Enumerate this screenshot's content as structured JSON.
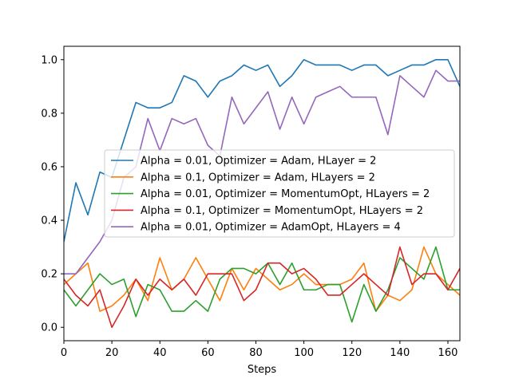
{
  "chart_data": {
    "type": "line",
    "title": "",
    "xlabel": "Steps",
    "ylabel": "",
    "xlim": [
      0,
      165
    ],
    "ylim": [
      -0.05,
      1.05
    ],
    "grid": false,
    "legend_position": "center",
    "x_ticks": [
      0,
      20,
      40,
      60,
      80,
      100,
      120,
      140,
      160
    ],
    "x_tick_labels": [
      "0",
      "20",
      "40",
      "60",
      "80",
      "100",
      "120",
      "140",
      "160"
    ],
    "y_ticks": [
      0.0,
      0.2,
      0.4,
      0.6,
      0.8,
      1.0
    ],
    "y_tick_labels": [
      "0.0",
      "0.2",
      "0.4",
      "0.6",
      "0.8",
      "1.0"
    ],
    "x": [
      0,
      5,
      10,
      15,
      20,
      25,
      30,
      35,
      40,
      45,
      50,
      55,
      60,
      65,
      70,
      75,
      80,
      85,
      90,
      95,
      100,
      105,
      110,
      115,
      120,
      125,
      130,
      135,
      140,
      145,
      150,
      155,
      160,
      165
    ],
    "series": [
      {
        "name": "Alpha = 0.01, Optimizer = Adam, HLayer = 2",
        "color": "#1f77b4",
        "values": [
          0.32,
          0.54,
          0.42,
          0.58,
          0.56,
          0.7,
          0.84,
          0.82,
          0.82,
          0.84,
          0.94,
          0.92,
          0.86,
          0.92,
          0.94,
          0.98,
          0.96,
          0.98,
          0.9,
          0.94,
          1.0,
          0.98,
          0.98,
          0.98,
          0.96,
          0.98,
          0.98,
          0.94,
          0.96,
          0.98,
          0.98,
          1.0,
          1.0,
          0.9
        ]
      },
      {
        "name": "Alpha = 0.1, Optimizer = Adam, HLayers = 2",
        "color": "#ff7f0e",
        "values": [
          0.16,
          0.2,
          0.24,
          0.06,
          0.08,
          0.12,
          0.18,
          0.1,
          0.26,
          0.14,
          0.18,
          0.26,
          0.18,
          0.1,
          0.22,
          0.14,
          0.22,
          0.18,
          0.14,
          0.16,
          0.2,
          0.16,
          0.16,
          0.16,
          0.18,
          0.24,
          0.06,
          0.12,
          0.1,
          0.14,
          0.3,
          0.2,
          0.16,
          0.12
        ]
      },
      {
        "name": "Alpha = 0.01, Optimizer = MomentumOpt, HLayers = 2",
        "color": "#2ca02c",
        "values": [
          0.14,
          0.08,
          0.14,
          0.2,
          0.16,
          0.18,
          0.04,
          0.16,
          0.14,
          0.06,
          0.06,
          0.1,
          0.06,
          0.18,
          0.22,
          0.22,
          0.2,
          0.24,
          0.16,
          0.24,
          0.14,
          0.14,
          0.16,
          0.16,
          0.02,
          0.16,
          0.06,
          0.14,
          0.26,
          0.22,
          0.18,
          0.3,
          0.14,
          0.14
        ]
      },
      {
        "name": "Alpha = 0.1, Optimizer = MomentumOpt, HLayers = 2",
        "color": "#d62728",
        "values": [
          0.18,
          0.12,
          0.08,
          0.14,
          0.0,
          0.08,
          0.18,
          0.12,
          0.18,
          0.14,
          0.18,
          0.12,
          0.2,
          0.2,
          0.2,
          0.1,
          0.14,
          0.24,
          0.24,
          0.2,
          0.22,
          0.18,
          0.12,
          0.12,
          0.16,
          0.2,
          0.16,
          0.12,
          0.3,
          0.16,
          0.2,
          0.2,
          0.14,
          0.22
        ]
      },
      {
        "name": "Alpha = 0.01, Optimizer = AdamOpt, HLayers = 4",
        "color": "#9467bd",
        "values": [
          0.2,
          0.2,
          0.26,
          0.32,
          0.4,
          0.56,
          0.6,
          0.78,
          0.66,
          0.78,
          0.76,
          0.78,
          0.68,
          0.64,
          0.86,
          0.76,
          0.82,
          0.88,
          0.74,
          0.86,
          0.76,
          0.86,
          0.88,
          0.9,
          0.86,
          0.86,
          0.86,
          0.72,
          0.94,
          0.9,
          0.86,
          0.96,
          0.92,
          0.92
        ]
      }
    ]
  }
}
